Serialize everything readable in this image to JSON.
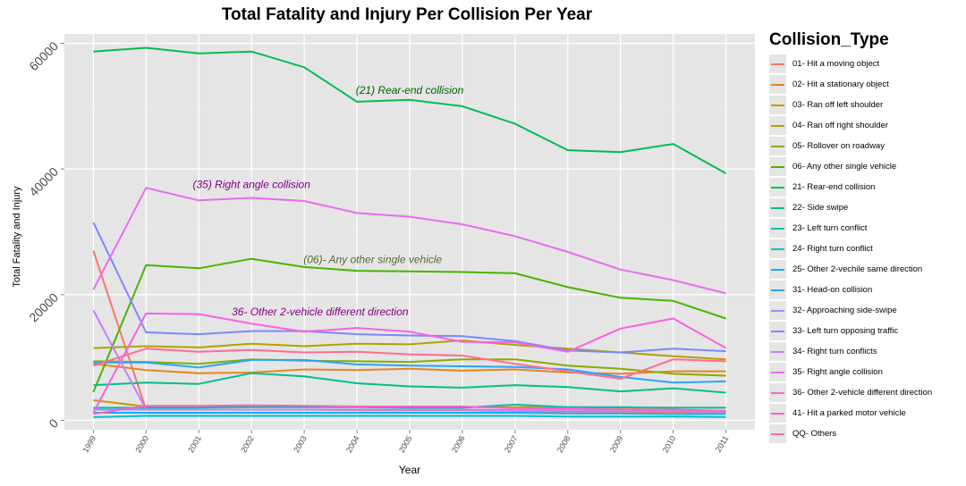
{
  "chart_data": {
    "type": "line",
    "title": "Total Fatality and Injury Per Collision Per Year",
    "xlabel": "Year",
    "ylabel": "Total Fatality and Injury",
    "x": [
      "1999",
      "2000",
      "2001",
      "2002",
      "2003",
      "2004",
      "2005",
      "2006",
      "2007",
      "2008",
      "2009",
      "2010",
      "2011"
    ],
    "ylim": [
      -1500,
      61500
    ],
    "yticks": [
      0,
      20000,
      40000,
      60000
    ],
    "ytick_labels": [
      "0",
      "20000",
      "40000",
      "60000"
    ],
    "grid": true,
    "legend_title": "Collision_Type",
    "legend_position": "right",
    "series": [
      {
        "name": "01- Hit a moving object",
        "color": "#F8766D",
        "values": [
          27000,
          1700,
          1700,
          1700,
          1700,
          1600,
          1600,
          1600,
          1500,
          1400,
          1400,
          1300,
          1300
        ]
      },
      {
        "name": "02- Hit a stationary object",
        "color": "#E7851E",
        "values": [
          9000,
          8000,
          7500,
          7600,
          8100,
          8000,
          8200,
          7900,
          8100,
          7600,
          7400,
          7800,
          7800
        ]
      },
      {
        "name": "03- Ran off left shoulder",
        "color": "#D09400",
        "values": [
          3200,
          2200,
          2200,
          2300,
          2200,
          2200,
          2100,
          2100,
          2100,
          2100,
          2000,
          2000,
          2000
        ]
      },
      {
        "name": "04- Ran off right shoulder",
        "color": "#B2A100",
        "values": [
          11500,
          11800,
          11600,
          12200,
          11800,
          12200,
          12100,
          12700,
          12000,
          11400,
          10800,
          10200,
          9700
        ]
      },
      {
        "name": "05- Rollover on roadway",
        "color": "#89AC00",
        "values": [
          9400,
          9300,
          9000,
          9700,
          9500,
          9400,
          9300,
          9700,
          9700,
          8700,
          8200,
          7400,
          7100
        ]
      },
      {
        "name": "06- Any other single vehicle",
        "color": "#45B500",
        "values": [
          4500,
          24700,
          24200,
          25700,
          24400,
          23800,
          23700,
          23600,
          23400,
          21200,
          19500,
          19000,
          16200
        ]
      },
      {
        "name": "21- Rear-end collision",
        "color": "#00BC51",
        "values": [
          58700,
          59300,
          58400,
          58700,
          56200,
          50700,
          51000,
          50000,
          47200,
          43000,
          42700,
          44000,
          39300
        ]
      },
      {
        "name": "22- Side swipe",
        "color": "#00C087",
        "values": [
          5600,
          6000,
          5800,
          7500,
          7000,
          5900,
          5400,
          5200,
          5600,
          5300,
          4600,
          5100,
          4400
        ]
      },
      {
        "name": "23- Left turn conflict",
        "color": "#00C0B2",
        "values": [
          2000,
          2000,
          2000,
          2100,
          2100,
          2100,
          2000,
          2000,
          2500,
          2100,
          2100,
          2000,
          2000
        ]
      },
      {
        "name": "24- Right turn conflict",
        "color": "#00BCD6",
        "values": [
          500,
          700,
          700,
          700,
          700,
          700,
          700,
          700,
          700,
          600,
          600,
          600,
          500
        ]
      },
      {
        "name": "25- Other 2-vechile same direction",
        "color": "#00B3F2",
        "values": [
          1200,
          1200,
          1200,
          1200,
          1200,
          1200,
          1200,
          1200,
          1200,
          1100,
          1100,
          1000,
          1000
        ]
      },
      {
        "name": "31- Head-on collision",
        "color": "#29A3FF",
        "values": [
          9200,
          9200,
          8400,
          9600,
          9600,
          8900,
          8700,
          8600,
          8500,
          8100,
          6900,
          6000,
          6200
        ]
      },
      {
        "name": "32- Approaching side-swipe",
        "color": "#9C8DFF",
        "values": [
          1700,
          1700,
          1700,
          1700,
          1700,
          1700,
          1700,
          1700,
          1600,
          1600,
          1500,
          1500,
          1400
        ]
      },
      {
        "name": "33- Left turn opposing traffic",
        "color": "#7F86FF",
        "values": [
          31500,
          14000,
          13700,
          14200,
          14200,
          13700,
          13500,
          13400,
          12600,
          11100,
          10800,
          11400,
          11000
        ]
      },
      {
        "name": "34- Right turn conflicts",
        "color": "#C77CFF",
        "values": [
          17500,
          1700,
          1700,
          1700,
          1700,
          1700,
          1700,
          1700,
          1600,
          1600,
          1500,
          1500,
          1400
        ]
      },
      {
        "name": "35- Right angle collision",
        "color": "#E76BF3",
        "values": [
          20800,
          37000,
          35000,
          35400,
          34900,
          33000,
          32400,
          31200,
          29300,
          26800,
          24000,
          22300,
          20200
        ]
      },
      {
        "name": "36- Other 2-vehicle different direction",
        "color": "#F862DF",
        "values": [
          1200,
          17000,
          16900,
          15400,
          14100,
          14700,
          14100,
          12500,
          12400,
          10900,
          14600,
          16200,
          11500
        ]
      },
      {
        "name": "41- Hit a parked motor vehicle",
        "color": "#FF61C3",
        "values": [
          1000,
          2300,
          2300,
          2400,
          2300,
          2200,
          2200,
          2200,
          1900,
          1900,
          1700,
          1700,
          1500
        ]
      },
      {
        "name": "QQ- Others",
        "color": "#FF6C91",
        "values": [
          8700,
          11400,
          10900,
          11200,
          10800,
          10900,
          10500,
          10300,
          9000,
          7800,
          6600,
          9700,
          9400
        ]
      }
    ],
    "annotations": [
      {
        "text": "(21) Rear-end collision",
        "x": 2005,
        "y": 52000,
        "color": "#006400"
      },
      {
        "text": "(35) Right angle collision",
        "x": 2002,
        "y": 37000,
        "color": "#800080"
      },
      {
        "text": "(06)- Any other single vehicle",
        "x": 2004.3,
        "y": 25000,
        "color": "#556B2F"
      },
      {
        "text": "36- Other 2-vehicle different direction",
        "x": 2003.3,
        "y": 16700,
        "color": "#800080"
      }
    ]
  }
}
